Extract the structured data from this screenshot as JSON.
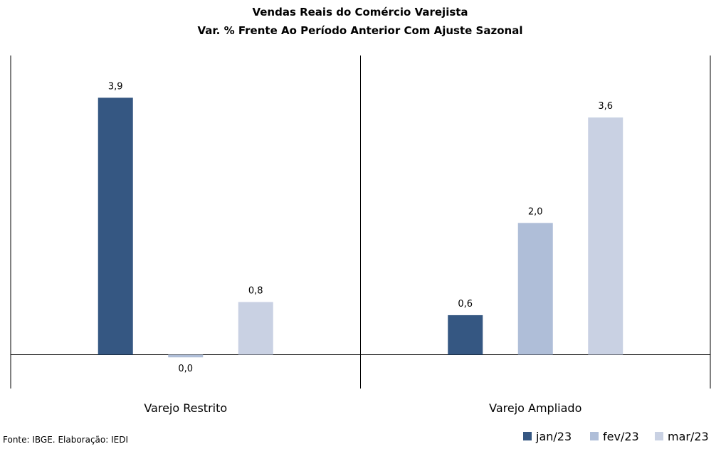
{
  "chart_data": {
    "type": "bar",
    "title": "Vendas Reais do Comércio Varejista",
    "subtitle": "Var. % Frente Ao Período Anterior Com Ajuste Sazonal",
    "categories": [
      "Varejo Restrito",
      "Varejo Ampliado"
    ],
    "series": [
      {
        "name": "jan/23",
        "color": "#355782",
        "values": [
          3.9,
          0.6
        ],
        "labels": [
          "3,9",
          "0,6"
        ]
      },
      {
        "name": "fev/23",
        "color": "#AFBED8",
        "values": [
          -0.04,
          2.0
        ],
        "labels": [
          "0,0",
          "2,0"
        ]
      },
      {
        "name": "mar/23",
        "color": "#C9D1E3",
        "values": [
          0.8,
          3.6
        ],
        "labels": [
          "0,8",
          "3,6"
        ]
      }
    ],
    "ylim": [
      -0.5,
      4.5
    ],
    "grid": false,
    "legend_position": "bottom-right",
    "source": "Fonte: IBGE. Elaboração: IEDI"
  }
}
